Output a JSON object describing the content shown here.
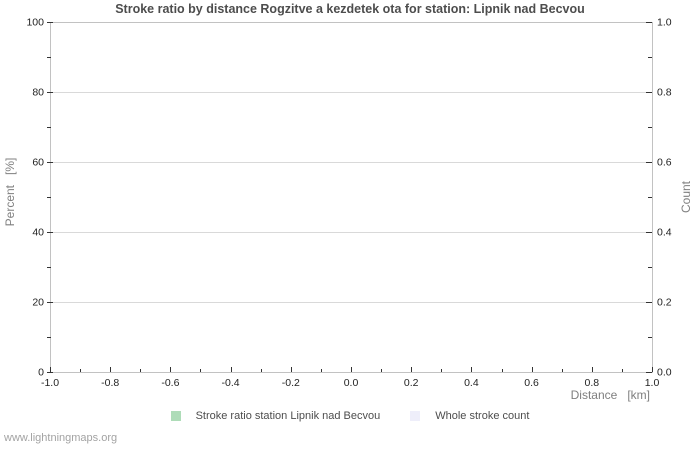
{
  "page": {
    "watermark": "www.lightningmaps.org"
  },
  "chart_data": {
    "type": "line",
    "title": "Stroke ratio by distance Rogzitve a kezdetek ota for station: Lipnik nad Becvou",
    "grid": "horizontal-major-only",
    "plot_background": "#ffffff",
    "border_color": "#c2c2c2",
    "grid_color": "#d9d9d9",
    "tick_color": "#333333",
    "x_axis": {
      "label": "Distance   [km]",
      "min": -1.0,
      "max": 1.0,
      "major_ticks": [
        -1.0,
        -0.8,
        -0.6,
        -0.4,
        -0.2,
        0.0,
        0.2,
        0.4,
        0.6,
        0.8,
        1.0
      ],
      "tick_labels": [
        "-1.0",
        "-0.8",
        "-0.6",
        "-0.4",
        "-0.2",
        "0.0",
        "0.2",
        "0.4",
        "0.6",
        "0.8",
        "1.0"
      ],
      "minor_step": 0.1
    },
    "y_axis_left": {
      "label": "Percent   [%]",
      "min": 0,
      "max": 100,
      "major_ticks": [
        0,
        20,
        40,
        60,
        80,
        100
      ],
      "tick_labels": [
        "0",
        "20",
        "40",
        "60",
        "80",
        "100"
      ],
      "minor_step": 10
    },
    "y_axis_right": {
      "label": "Count",
      "min": 0.0,
      "max": 1.0,
      "major_ticks": [
        0.0,
        0.2,
        0.4,
        0.6,
        0.8,
        1.0
      ],
      "tick_labels": [
        "0.0",
        "0.2",
        "0.4",
        "0.6",
        "0.8",
        "1.0"
      ],
      "minor_step": 0.1
    },
    "series": [
      {
        "name": "Stroke ratio station Lipnik nad Becvou",
        "color": "#aedcb8",
        "x": [],
        "values": []
      },
      {
        "name": "Whole stroke count",
        "color": "#eeeefa",
        "x": [],
        "values": []
      }
    ],
    "note": "empty chart - no data points plotted",
    "legend_position": "bottom-center"
  },
  "legend": {
    "items": [
      {
        "label": "Stroke ratio station Lipnik nad Becvou",
        "color": "#aedcb8"
      },
      {
        "label": "Whole stroke count",
        "color": "#eeeefa"
      }
    ]
  }
}
